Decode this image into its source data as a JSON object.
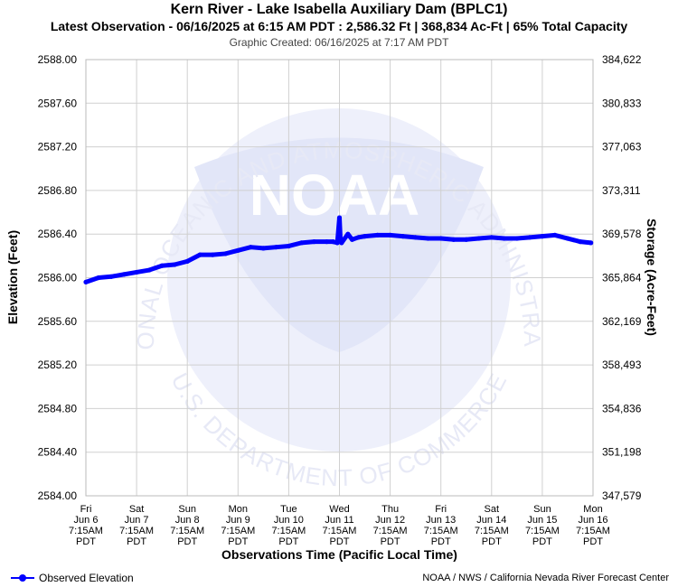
{
  "header": {
    "title": "Kern River - Lake Isabella Auxiliary Dam (BPLC1)",
    "subtitle": "Latest Observation - 06/16/2025 at 6:15 AM PDT : 2,586.32 Ft | 368,834 Ac-Ft | 65% Total Capacity",
    "created": "Graphic Created: 06/16/2025 at 7:17 AM PDT"
  },
  "watermark": {
    "logo_text": "NOAA",
    "ring_top": "NATIONAL OCEANIC AND ATMOSPHERIC ADMINISTRATION",
    "ring_bottom": "U.S. DEPARTMENT OF COMMERCE"
  },
  "legend": {
    "label": "Observed Elevation"
  },
  "credit": "NOAA / NWS / California Nevada River Forecast Center",
  "colors": {
    "series": "#0000ff",
    "grid": "#d0d0d0",
    "watermark": "#eef0fb"
  },
  "chart_data": {
    "type": "line",
    "xlabel": "Observations Time (Pacific Local Time)",
    "ylabel": "Elevation (Feet)",
    "y2label": "Storage (Acre-Feet)",
    "ylim": [
      2584.0,
      2588.0
    ],
    "xlim": [
      "2025-06-06 07:15",
      "2025-06-16 07:15"
    ],
    "grid": true,
    "legend_position": "bottom-left",
    "y_ticks": [
      "2588.00",
      "2587.60",
      "2587.20",
      "2586.80",
      "2586.40",
      "2586.00",
      "2585.60",
      "2585.20",
      "2584.80",
      "2584.40",
      "2584.00"
    ],
    "y2_ticks": [
      "384,622",
      "380,833",
      "377,063",
      "373,311",
      "369,578",
      "365,864",
      "362,169",
      "358,493",
      "354,836",
      "351,198",
      "347,579"
    ],
    "x_ticks": [
      [
        "Fri",
        "Jun 6",
        "7:15AM",
        "PDT"
      ],
      [
        "Sat",
        "Jun 7",
        "7:15AM",
        "PDT"
      ],
      [
        "Sun",
        "Jun 8",
        "7:15AM",
        "PDT"
      ],
      [
        "Mon",
        "Jun 9",
        "7:15AM",
        "PDT"
      ],
      [
        "Tue",
        "Jun 10",
        "7:15AM",
        "PDT"
      ],
      [
        "Wed",
        "Jun 11",
        "7:15AM",
        "PDT"
      ],
      [
        "Thu",
        "Jun 12",
        "7:15AM",
        "PDT"
      ],
      [
        "Fri",
        "Jun 13",
        "7:15AM",
        "PDT"
      ],
      [
        "Sat",
        "Jun 14",
        "7:15AM",
        "PDT"
      ],
      [
        "Sun",
        "Jun 15",
        "7:15AM",
        "PDT"
      ],
      [
        "Mon",
        "Jun 16",
        "7:15AM",
        "PDT"
      ]
    ],
    "series": [
      {
        "name": "Observed Elevation",
        "x": [
          "2025-06-06 07:15",
          "2025-06-06 13:15",
          "2025-06-06 19:15",
          "2025-06-07 01:15",
          "2025-06-07 07:15",
          "2025-06-07 13:15",
          "2025-06-07 19:15",
          "2025-06-08 01:15",
          "2025-06-08 07:15",
          "2025-06-08 13:15",
          "2025-06-08 19:15",
          "2025-06-09 01:15",
          "2025-06-09 07:15",
          "2025-06-09 13:15",
          "2025-06-09 19:15",
          "2025-06-10 01:15",
          "2025-06-10 07:15",
          "2025-06-10 13:15",
          "2025-06-10 19:15",
          "2025-06-11 01:15",
          "2025-06-11 04:15",
          "2025-06-11 06:15",
          "2025-06-11 07:15",
          "2025-06-11 07:45",
          "2025-06-11 08:15",
          "2025-06-11 11:15",
          "2025-06-11 13:15",
          "2025-06-11 16:15",
          "2025-06-11 19:15",
          "2025-06-12 01:15",
          "2025-06-12 07:15",
          "2025-06-12 13:15",
          "2025-06-12 19:15",
          "2025-06-13 01:15",
          "2025-06-13 07:15",
          "2025-06-13 13:15",
          "2025-06-13 19:15",
          "2025-06-14 01:15",
          "2025-06-14 07:15",
          "2025-06-14 13:15",
          "2025-06-14 19:15",
          "2025-06-15 01:15",
          "2025-06-15 07:15",
          "2025-06-15 13:15",
          "2025-06-15 19:15",
          "2025-06-16 01:15",
          "2025-06-16 06:15"
        ],
        "values": [
          2585.96,
          2586.0,
          2586.01,
          2586.03,
          2586.05,
          2586.07,
          2586.11,
          2586.12,
          2586.15,
          2586.21,
          2586.21,
          2586.22,
          2586.25,
          2586.28,
          2586.27,
          2586.28,
          2586.29,
          2586.32,
          2586.33,
          2586.33,
          2586.33,
          2586.32,
          2586.55,
          2586.33,
          2586.32,
          2586.4,
          2586.35,
          2586.37,
          2586.38,
          2586.39,
          2586.39,
          2586.38,
          2586.37,
          2586.36,
          2586.36,
          2586.35,
          2586.35,
          2586.36,
          2586.37,
          2586.36,
          2586.36,
          2586.37,
          2586.38,
          2586.39,
          2586.36,
          2586.33,
          2586.32
        ]
      }
    ]
  }
}
